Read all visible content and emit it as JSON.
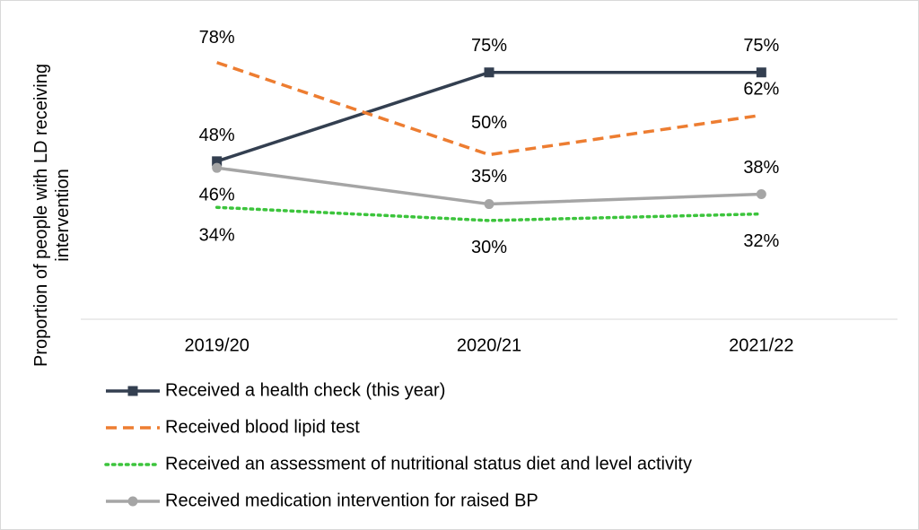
{
  "chart_data": {
    "type": "line",
    "y_label": "Proportion of people with LD receiving intervention",
    "categories": [
      "2019/20",
      "2020/21",
      "2021/22"
    ],
    "ylim": [
      0,
      100
    ],
    "series": [
      {
        "name": "Received a health check (this year)",
        "color": "#333f50",
        "dash": "solid",
        "marker": "square",
        "values": [
          48,
          75,
          75
        ],
        "value_labels": [
          "48%",
          "75%",
          "75%"
        ]
      },
      {
        "name": "Received blood lipid test",
        "color": "#ed7d31",
        "dash": "dash",
        "marker": "none",
        "values": [
          78,
          50,
          62
        ],
        "value_labels": [
          "78%",
          "50%",
          "62%"
        ]
      },
      {
        "name": "Received an assessment of nutritional status diet and level activity",
        "color": "#3cc43c",
        "dash": "dot",
        "marker": "none",
        "values": [
          34,
          30,
          32
        ],
        "value_labels": [
          "34%",
          "30%",
          "32%"
        ]
      },
      {
        "name": "Received medication intervention for raised BP",
        "color": "#a5a5a5",
        "dash": "solid",
        "marker": "circle",
        "values": [
          46,
          35,
          38
        ],
        "value_labels": [
          "46%",
          "35%",
          "38%"
        ]
      }
    ]
  }
}
